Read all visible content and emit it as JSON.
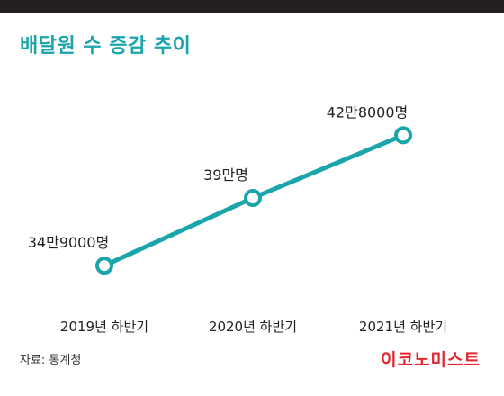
{
  "title": "배달원 수 증감 추이",
  "source": "자료: 통계청",
  "logo": "이코노미스트",
  "colors": {
    "line": "#1aa5ab",
    "title": "#1aa5ab",
    "logo": "#e2272e",
    "text": "#222222"
  },
  "chart_data": {
    "type": "line",
    "title": "배달원 수 증감 추이",
    "xlabel": "",
    "ylabel": "",
    "categories": [
      "2019년 하반기",
      "2020년 하반기",
      "2021년 하반기"
    ],
    "series": [
      {
        "values": [
          349000,
          390000,
          428000
        ],
        "labels": [
          "34만9000명",
          "39만명",
          "42만8000명"
        ]
      }
    ],
    "ylim": [
      330000,
      450000
    ],
    "grid": false,
    "legend": "none"
  }
}
